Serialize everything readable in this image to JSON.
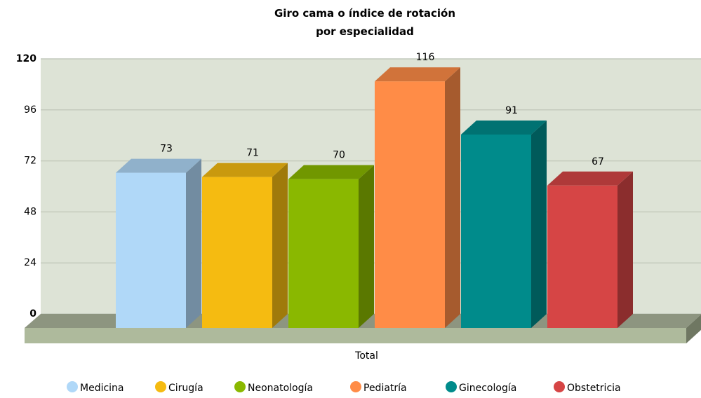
{
  "chart_data": {
    "type": "bar",
    "title": "Giro cama o índice de rotación por especialidad",
    "categories": [
      "Total"
    ],
    "series": [
      {
        "name": "Medicina",
        "color": "#b0d8f8",
        "values": [
          73
        ]
      },
      {
        "name": "Cirugía",
        "color": "#f5bb11",
        "values": [
          71
        ]
      },
      {
        "name": "Neonatología",
        "color": "#8ab800",
        "values": [
          70
        ]
      },
      {
        "name": "Pediatría",
        "color": "#ff8c47",
        "values": [
          116
        ]
      },
      {
        "name": "Ginecología",
        "color": "#008b8b",
        "values": [
          91
        ]
      },
      {
        "name": "Obstetricia",
        "color": "#d64545",
        "values": [
          67
        ]
      }
    ],
    "ylim": [
      0,
      120
    ],
    "yticks": [
      0,
      24,
      48,
      72,
      96,
      120
    ],
    "grid": true,
    "legend": "bottom"
  }
}
